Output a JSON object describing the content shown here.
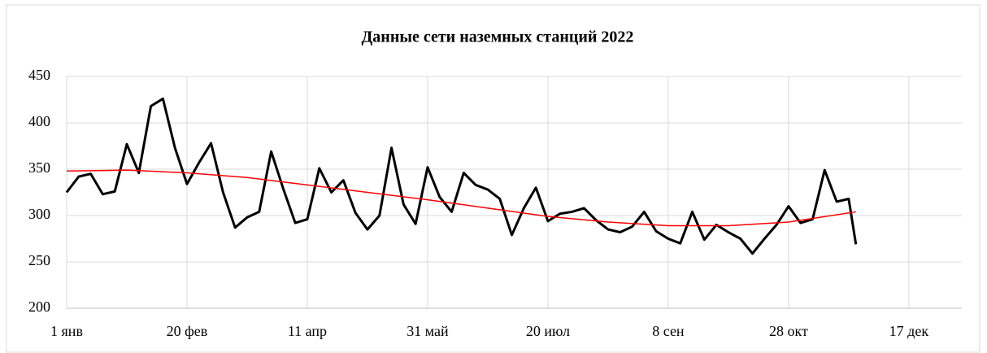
{
  "chart_data": {
    "type": "line",
    "title": "Данные сети наземных станций 2022",
    "xlim": [
      0,
      372
    ],
    "xticks": [
      {
        "value": 0,
        "label": "1 янв"
      },
      {
        "value": 50,
        "label": "20 фев"
      },
      {
        "value": 100,
        "label": "11 апр"
      },
      {
        "value": 150,
        "label": "31 май"
      },
      {
        "value": 200,
        "label": "20 июл"
      },
      {
        "value": 250,
        "label": "8 сен"
      },
      {
        "value": 300,
        "label": "28 окт"
      },
      {
        "value": 350,
        "label": "17 дек"
      }
    ],
    "ylim": [
      200,
      450
    ],
    "yticks": [
      200,
      250,
      300,
      350,
      400,
      450
    ],
    "grid": true,
    "series": [
      {
        "color": "#000000",
        "x": [
          0,
          5,
          10,
          15,
          20,
          25,
          30,
          35,
          40,
          45,
          50,
          55,
          60,
          65,
          70,
          75,
          80,
          85,
          90,
          95,
          100,
          105,
          110,
          115,
          120,
          125,
          130,
          135,
          140,
          145,
          150,
          155,
          160,
          165,
          170,
          175,
          180,
          185,
          190,
          195,
          200,
          205,
          210,
          215,
          220,
          225,
          230,
          235,
          240,
          245,
          250,
          255,
          260,
          265,
          270,
          275,
          280,
          285,
          290,
          295,
          300,
          305,
          310,
          315,
          320,
          325,
          328
        ],
        "values": [
          325,
          342,
          345,
          323,
          326,
          377,
          346,
          418,
          426,
          373,
          334,
          357,
          378,
          325,
          287,
          298,
          304,
          369,
          329,
          292,
          296,
          351,
          325,
          338,
          303,
          285,
          300,
          373,
          312,
          291,
          352,
          320,
          304,
          346,
          333,
          328,
          318,
          279,
          308,
          330,
          294,
          302,
          304,
          308,
          295,
          285,
          282,
          288,
          304,
          283,
          275,
          270,
          304,
          274,
          290,
          282,
          275,
          259,
          275,
          290,
          310,
          292,
          296,
          349,
          315,
          318,
          269
        ]
      },
      {
        "color": "#ff0000",
        "x": [
          0,
          25,
          50,
          75,
          100,
          125,
          150,
          175,
          200,
          225,
          250,
          275,
          300,
          328
        ],
        "values": [
          348,
          349,
          346,
          341,
          333,
          325,
          317,
          308,
          299,
          293,
          289,
          289,
          293,
          304
        ]
      }
    ]
  }
}
